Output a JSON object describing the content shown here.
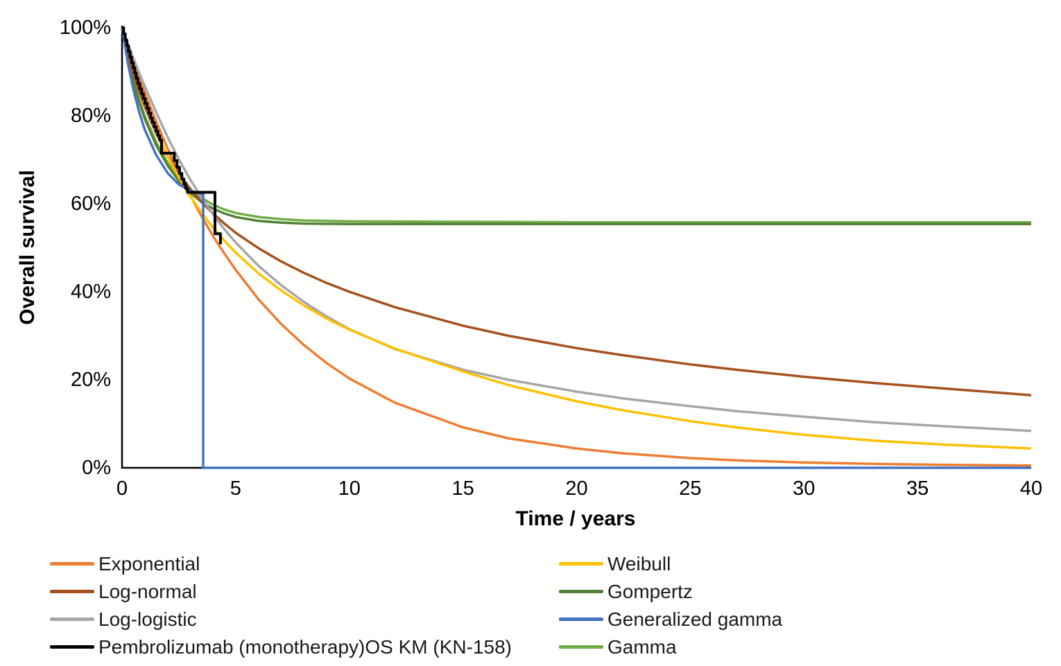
{
  "chart": {
    "ylabel": "Overall survival",
    "xlabel": "Time / years",
    "y_ticks": [
      "100%",
      "80%",
      "60%",
      "40%",
      "20%",
      "0%"
    ],
    "x_ticks": [
      "0",
      "5",
      "10",
      "15",
      "20",
      "25",
      "30",
      "35",
      "40"
    ],
    "axis_color": "#000000",
    "background": "#ffffff"
  },
  "chart_data": {
    "type": "line",
    "title": "",
    "xlabel": "Time / years",
    "ylabel": "Overall survival",
    "xlim": [
      0,
      40
    ],
    "ylim": [
      0,
      100
    ],
    "grid": false,
    "legend_position": "bottom-two-columns",
    "units": {
      "x": "years",
      "y": "percent overall survival"
    },
    "series": [
      {
        "name": "Gamma",
        "color": "#70AD47",
        "style": "smooth",
        "points": [
          [
            0,
            100
          ],
          [
            0.25,
            93.6
          ],
          [
            0.5,
            88.1
          ],
          [
            0.75,
            83.7
          ],
          [
            1,
            79.9
          ],
          [
            1.5,
            74
          ],
          [
            2,
            69.4
          ],
          [
            2.5,
            66
          ],
          [
            3,
            63.3
          ],
          [
            3.5,
            61.3
          ],
          [
            4,
            59.8
          ],
          [
            4.5,
            58.7
          ],
          [
            5,
            57.9
          ],
          [
            6,
            57
          ],
          [
            7,
            56.5
          ],
          [
            8,
            56.2
          ],
          [
            10,
            56
          ],
          [
            15,
            55.9
          ],
          [
            20,
            55.8
          ],
          [
            25,
            55.8
          ],
          [
            30,
            55.8
          ],
          [
            35,
            55.8
          ],
          [
            40,
            55.8
          ]
        ]
      },
      {
        "name": "Gompertz",
        "color": "#538135",
        "style": "smooth",
        "points": [
          [
            0,
            100
          ],
          [
            0.25,
            93.2
          ],
          [
            0.5,
            87.6
          ],
          [
            0.75,
            83.1
          ],
          [
            1,
            79.3
          ],
          [
            1.5,
            73.3
          ],
          [
            2,
            68.7
          ],
          [
            2.5,
            65.2
          ],
          [
            3,
            62.5
          ],
          [
            3.5,
            60.4
          ],
          [
            4,
            58.9
          ],
          [
            4.5,
            57.8
          ],
          [
            5,
            57
          ],
          [
            6,
            56.1
          ],
          [
            7,
            55.7
          ],
          [
            8,
            55.5
          ],
          [
            10,
            55.4
          ],
          [
            15,
            55.4
          ],
          [
            20,
            55.4
          ],
          [
            25,
            55.4
          ],
          [
            30,
            55.4
          ],
          [
            35,
            55.4
          ],
          [
            40,
            55.4
          ]
        ]
      },
      {
        "name": "Exponential",
        "color": "#ED7D31",
        "style": "smooth",
        "points": [
          [
            0,
            100
          ],
          [
            0.25,
            96.1
          ],
          [
            0.5,
            92.3
          ],
          [
            0.75,
            88.7
          ],
          [
            1,
            85.2
          ],
          [
            1.5,
            78.7
          ],
          [
            2,
            72.6
          ],
          [
            2.5,
            67
          ],
          [
            3,
            61.9
          ],
          [
            3.5,
            57.1
          ],
          [
            4,
            52.7
          ],
          [
            4.5,
            48.7
          ],
          [
            5,
            45
          ],
          [
            6,
            38.3
          ],
          [
            7,
            32.7
          ],
          [
            8,
            27.9
          ],
          [
            9,
            23.8
          ],
          [
            10,
            20.3
          ],
          [
            12,
            14.8
          ],
          [
            15,
            9.2
          ],
          [
            17,
            6.7
          ],
          [
            20,
            4.4
          ],
          [
            22,
            3.3
          ],
          [
            25,
            2.2
          ],
          [
            27,
            1.7
          ],
          [
            30,
            1.2
          ],
          [
            33,
            0.9
          ],
          [
            36,
            0.7
          ],
          [
            40,
            0.5
          ]
        ]
      },
      {
        "name": "Log-normal",
        "color": "#A5501E",
        "style": "smooth",
        "points": [
          [
            0,
            100
          ],
          [
            0.25,
            94.5
          ],
          [
            0.5,
            89.6
          ],
          [
            0.75,
            85.6
          ],
          [
            1,
            82.1
          ],
          [
            1.5,
            76
          ],
          [
            2,
            70.9
          ],
          [
            2.5,
            66.9
          ],
          [
            3,
            63.4
          ],
          [
            3.5,
            60.4
          ],
          [
            4,
            57.8
          ],
          [
            4.5,
            55.5
          ],
          [
            5,
            53.4
          ],
          [
            6,
            49.9
          ],
          [
            7,
            46.9
          ],
          [
            8,
            44.3
          ],
          [
            9,
            42
          ],
          [
            10,
            40
          ],
          [
            12,
            36.5
          ],
          [
            15,
            32.3
          ],
          [
            17,
            30
          ],
          [
            20,
            27.2
          ],
          [
            22,
            25.6
          ],
          [
            25,
            23.5
          ],
          [
            27,
            22.3
          ],
          [
            30,
            20.7
          ],
          [
            33,
            19.3
          ],
          [
            36,
            18.1
          ],
          [
            40,
            16.5
          ]
        ]
      },
      {
        "name": "Log-logistic",
        "color": "#A6A6A6",
        "style": "smooth",
        "points": [
          [
            0,
            100
          ],
          [
            0.25,
            96.5
          ],
          [
            0.5,
            93
          ],
          [
            0.75,
            89.8
          ],
          [
            1,
            86.7
          ],
          [
            1.5,
            80.8
          ],
          [
            2,
            75.2
          ],
          [
            2.5,
            70.1
          ],
          [
            3,
            65.5
          ],
          [
            3.5,
            61.4
          ],
          [
            4,
            57.6
          ],
          [
            4.5,
            54.2
          ],
          [
            5,
            51.2
          ],
          [
            6,
            45.9
          ],
          [
            7,
            41.5
          ],
          [
            8,
            37.7
          ],
          [
            9,
            34.4
          ],
          [
            10,
            31.5
          ],
          [
            12,
            27
          ],
          [
            15,
            22.3
          ],
          [
            17,
            20
          ],
          [
            20,
            17.3
          ],
          [
            22,
            15.8
          ],
          [
            25,
            14
          ],
          [
            27,
            12.9
          ],
          [
            30,
            11.6
          ],
          [
            33,
            10.4
          ],
          [
            36,
            9.5
          ],
          [
            40,
            8.4
          ]
        ]
      },
      {
        "name": "Weibull",
        "color": "#FFC000",
        "style": "smooth",
        "points": [
          [
            0,
            100
          ],
          [
            0.25,
            95.5
          ],
          [
            0.5,
            91.1
          ],
          [
            0.75,
            87
          ],
          [
            1,
            83.2
          ],
          [
            1.5,
            76.6
          ],
          [
            2,
            70.9
          ],
          [
            2.5,
            66
          ],
          [
            3,
            61.7
          ],
          [
            3.5,
            58
          ],
          [
            4,
            54.6
          ],
          [
            4.5,
            51.6
          ],
          [
            5,
            48.9
          ],
          [
            6,
            44.2
          ],
          [
            7,
            40.3
          ],
          [
            8,
            36.9
          ],
          [
            9,
            33.9
          ],
          [
            10,
            31.4
          ],
          [
            12,
            27.1
          ],
          [
            15,
            21.9
          ],
          [
            17,
            18.8
          ],
          [
            20,
            15.1
          ],
          [
            22,
            13.1
          ],
          [
            25,
            10.6
          ],
          [
            27,
            9.2
          ],
          [
            30,
            7.5
          ],
          [
            33,
            6.2
          ],
          [
            36,
            5.3
          ],
          [
            40,
            4.4
          ]
        ]
      },
      {
        "name": "Generalized gamma",
        "color": "#4472C4",
        "style": "smooth",
        "points": [
          [
            0,
            100
          ],
          [
            0.25,
            92.1
          ],
          [
            0.5,
            85.9
          ],
          [
            0.75,
            80.9
          ],
          [
            1,
            76.8
          ],
          [
            1.5,
            71.1
          ],
          [
            2,
            67
          ],
          [
            2.5,
            64.4
          ],
          [
            3,
            63
          ],
          [
            3.3,
            62.5
          ],
          [
            3.57,
            62.2
          ],
          [
            3.57,
            0
          ],
          [
            40,
            0
          ]
        ]
      },
      {
        "name": "Pembrolizumab (monotherapy)OS KM (KN-158)",
        "color": "#000000",
        "style": "step",
        "points": [
          [
            0,
            100
          ],
          [
            0.07,
            98.6
          ],
          [
            0.14,
            97.2
          ],
          [
            0.21,
            95.9
          ],
          [
            0.28,
            94.6
          ],
          [
            0.35,
            93.3
          ],
          [
            0.42,
            92.1
          ],
          [
            0.49,
            90.9
          ],
          [
            0.56,
            89.7
          ],
          [
            0.63,
            88.5
          ],
          [
            0.7,
            87.3
          ],
          [
            0.78,
            86.1
          ],
          [
            0.86,
            85
          ],
          [
            0.94,
            83.9
          ],
          [
            1.02,
            82.8
          ],
          [
            1.1,
            81.7
          ],
          [
            1.18,
            80.6
          ],
          [
            1.26,
            79.5
          ],
          [
            1.34,
            78.5
          ],
          [
            1.42,
            77.5
          ],
          [
            1.5,
            76.5
          ],
          [
            1.58,
            75.5
          ],
          [
            1.66,
            74.5
          ],
          [
            1.74,
            71.5
          ],
          [
            2.3,
            69.8
          ],
          [
            2.42,
            68.3
          ],
          [
            2.53,
            66.9
          ],
          [
            2.63,
            65.6
          ],
          [
            2.72,
            64.5
          ],
          [
            2.8,
            63.5
          ],
          [
            2.88,
            62.6
          ],
          [
            4.09,
            53.2
          ],
          [
            4.33,
            50.8
          ]
        ]
      }
    ]
  },
  "legend": {
    "left": [
      {
        "label": "Exponential",
        "color": "#ED7D31"
      },
      {
        "label": "Log-normal",
        "color": "#A5501E"
      },
      {
        "label": "Log-logistic",
        "color": "#A6A6A6"
      },
      {
        "label": "Pembrolizumab (monotherapy)OS KM (KN-158)",
        "color": "#000000"
      }
    ],
    "right": [
      {
        "label": "Weibull",
        "color": "#FFC000"
      },
      {
        "label": "Gompertz",
        "color": "#538135"
      },
      {
        "label": "Generalized gamma",
        "color": "#4472C4"
      },
      {
        "label": "Gamma",
        "color": "#70AD47"
      }
    ]
  }
}
